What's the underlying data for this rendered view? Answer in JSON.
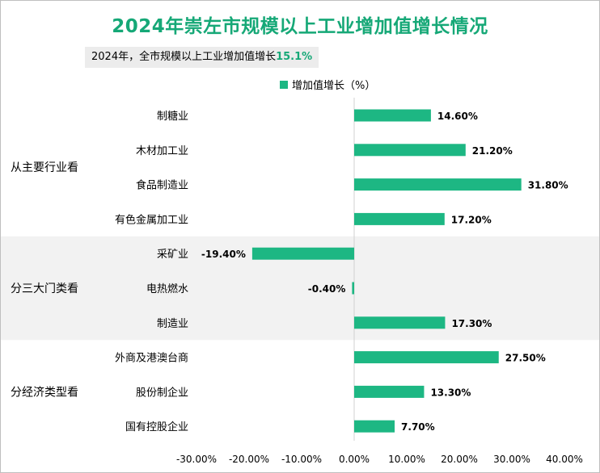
{
  "title": "2024年崇左市规模以上工业增加值增长情况",
  "subtitle": {
    "text": "2024年，全市规模以上工业增加值增长",
    "highlight": "15.1%"
  },
  "colors": {
    "accent": "#16a877",
    "bar": "#1db783",
    "band": "#f2f2f2"
  },
  "chart_data": {
    "type": "bar",
    "orientation": "horizontal",
    "legend": "top-center",
    "series": [
      {
        "name": "增加值增长（%）",
        "unit": "%",
        "categories": [
          "制糖业",
          "木材加工业",
          "食品制造业",
          "有色金属加工业",
          "采矿业",
          "电热燃水",
          "制造业",
          "外商及港澳台商",
          "股份制企业",
          "国有控股企业"
        ],
        "values": [
          14.6,
          21.2,
          31.8,
          17.2,
          -19.4,
          -0.4,
          17.3,
          27.5,
          13.3,
          7.7
        ],
        "value_labels": [
          "14.60%",
          "21.20%",
          "31.80%",
          "17.20%",
          "-19.40%",
          "-0.40%",
          "17.30%",
          "27.50%",
          "13.30%",
          "7.70%"
        ]
      }
    ],
    "groups": [
      {
        "label": "从主要行业看",
        "members": [
          0,
          1,
          2,
          3
        ]
      },
      {
        "label": "分三大门类看",
        "members": [
          4,
          5,
          6
        ]
      },
      {
        "label": "分经济类型看",
        "members": [
          7,
          8,
          9
        ]
      }
    ],
    "xlim": [
      -30,
      40
    ],
    "xticks": [
      -30,
      -20,
      -10,
      0,
      10,
      20,
      30,
      40
    ],
    "xtick_labels": [
      "-30.00%",
      "-20.00%",
      "-10.00%",
      "0.00%",
      "10.00%",
      "20.00%",
      "30.00%",
      "40.00%"
    ],
    "grid": false
  }
}
